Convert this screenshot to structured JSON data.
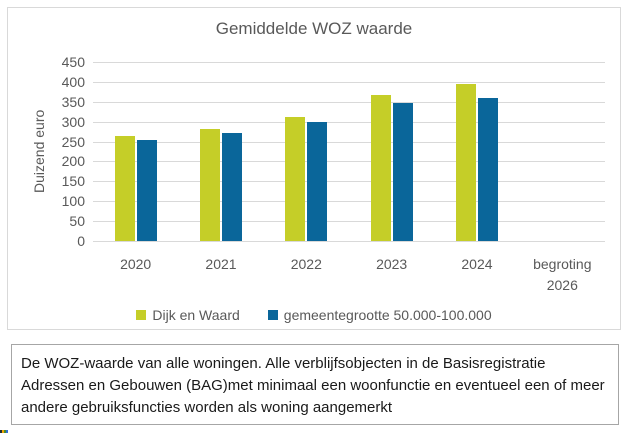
{
  "chart": {
    "title": "Gemiddelde WOZ waarde",
    "ylabel": "Duizend euro"
  },
  "chart_data": {
    "type": "bar",
    "title": "Gemiddelde WOZ waarde",
    "xlabel": "",
    "ylabel": "Duizend euro",
    "categories": [
      "2020",
      "2021",
      "2022",
      "2023",
      "2024",
      "begroting 2026"
    ],
    "series": [
      {
        "name": "Dijk en Waard",
        "color": "#C5CE28",
        "values": [
          264,
          281,
          311,
          366,
          394,
          null
        ]
      },
      {
        "name": "gemeentegrootte 50.000-100.000",
        "color": "#0A669A",
        "values": [
          254,
          271,
          299,
          348,
          360,
          null
        ]
      }
    ],
    "ylim": [
      0,
      450
    ],
    "yticks": [
      450,
      400,
      350,
      300,
      250,
      200,
      150,
      100,
      50,
      0
    ],
    "grid": true,
    "legend_position": "bottom"
  },
  "caption": {
    "text": "De WOZ-waarde van alle woningen. Alle verblijfsobjecten in de Basisregistratie Adressen en Gebouwen (BAG)met minimaal een woonfunctie en eventueel een of meer andere gebruiksfuncties worden als woning aangemerkt"
  },
  "colors": {
    "grid": "#D9D9D9",
    "axis_text": "#595959",
    "card_border": "#D9D9D9",
    "caption_border": "#A6A6A6",
    "caption_text": "#1a1a1a"
  },
  "corner_fragment": {
    "colors": [
      "#222a35",
      "#f0a500",
      "#4a8b2c",
      "#2f6fd6"
    ]
  }
}
